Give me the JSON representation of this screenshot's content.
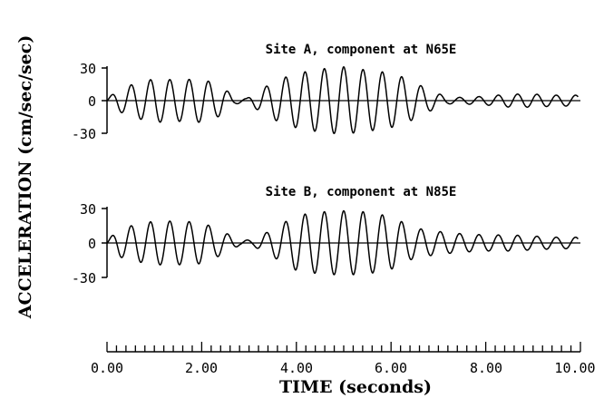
{
  "chart_data": {
    "type": "line",
    "ylabel": "ACCELERATION (cm/sec/sec)",
    "xlabel": "TIME (seconds)",
    "xlim": [
      0,
      10
    ],
    "xticks": [
      "0.00",
      "2.00",
      "4.00",
      "6.00",
      "8.00",
      "10.00"
    ],
    "x_minor_tick_step": 0.2,
    "panels": [
      {
        "title": "Site A, component at N65E",
        "ylim": [
          -30,
          30
        ],
        "yticks": [
          "30",
          "0",
          "-30"
        ],
        "series": [
          {
            "line_color": "#000000",
            "frequency_hz": 2.45,
            "peak_envelope": [
              [
                0,
                2
              ],
              [
                0.25,
                10
              ],
              [
                0.6,
                16
              ],
              [
                1.0,
                20
              ],
              [
                1.5,
                19
              ],
              [
                2.0,
                20
              ],
              [
                2.4,
                14
              ],
              [
                2.7,
                3
              ],
              [
                2.95,
                2
              ],
              [
                3.2,
                9
              ],
              [
                3.6,
                19
              ],
              [
                4.0,
                25
              ],
              [
                4.5,
                29
              ],
              [
                5.0,
                31
              ],
              [
                5.5,
                28
              ],
              [
                5.9,
                26
              ],
              [
                6.3,
                21
              ],
              [
                6.8,
                10
              ],
              [
                7.2,
                3
              ],
              [
                7.5,
                3
              ],
              [
                8.0,
                4
              ],
              [
                8.5,
                6
              ],
              [
                9.0,
                6
              ],
              [
                9.5,
                5
              ],
              [
                9.95,
                5
              ]
            ]
          }
        ]
      },
      {
        "title": "Site B, component at N85E",
        "ylim": [
          -30,
          30
        ],
        "yticks": [
          "30",
          "0",
          "-30"
        ],
        "series": [
          {
            "line_color": "#000000",
            "frequency_hz": 2.45,
            "peak_envelope": [
              [
                0,
                2
              ],
              [
                0.25,
                12
              ],
              [
                0.6,
                16
              ],
              [
                1.0,
                19
              ],
              [
                1.5,
                19
              ],
              [
                2.0,
                18
              ],
              [
                2.5,
                9
              ],
              [
                2.8,
                2
              ],
              [
                3.1,
                3
              ],
              [
                3.5,
                12
              ],
              [
                4.0,
                24
              ],
              [
                4.5,
                27
              ],
              [
                5.0,
                28
              ],
              [
                5.5,
                27
              ],
              [
                6.0,
                23
              ],
              [
                6.5,
                13
              ],
              [
                7.0,
                10
              ],
              [
                7.5,
                8
              ],
              [
                8.0,
                7
              ],
              [
                8.5,
                7
              ],
              [
                9.0,
                6
              ],
              [
                9.5,
                5
              ],
              [
                9.95,
                5
              ]
            ]
          }
        ]
      }
    ]
  }
}
